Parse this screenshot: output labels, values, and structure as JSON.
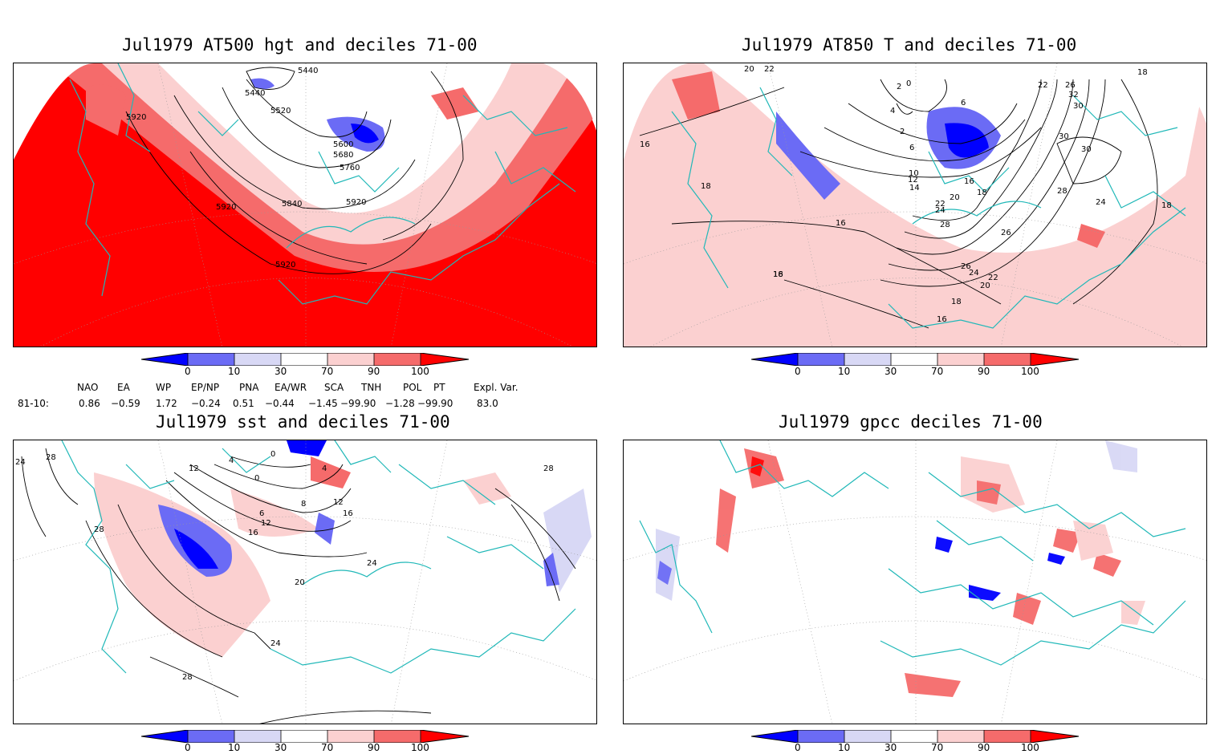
{
  "panels": [
    {
      "id": "p1",
      "title": "Jul1979 AT500 hgt and deciles 71-00",
      "contour_labels": [
        "5440",
        "5440",
        "5520",
        "5920",
        "5600",
        "5680",
        "5760",
        "5840",
        "5920",
        "5920",
        "5920"
      ]
    },
    {
      "id": "p2",
      "title": "Jul1979 AT850 T and deciles 71-00",
      "contour_labels": [
        "20",
        "22",
        "2",
        "0",
        "4",
        "2",
        "6",
        "6",
        "16",
        "18",
        "10",
        "12",
        "14",
        "16",
        "18",
        "20",
        "22",
        "24",
        "28",
        "26",
        "26",
        "24",
        "22",
        "20",
        "18",
        "16",
        "16",
        "16",
        "18",
        "22",
        "26",
        "30",
        "32",
        "30",
        "30",
        "28",
        "24",
        "18",
        "18"
      ]
    },
    {
      "id": "p3",
      "title": "Jul1979 sst and deciles 71-00",
      "contour_labels": [
        "24",
        "28",
        "12",
        "4",
        "0",
        "0",
        "4",
        "6",
        "8",
        "12",
        "16",
        "20",
        "24",
        "24",
        "28",
        "28",
        "28",
        "16",
        "12"
      ]
    },
    {
      "id": "p4",
      "title": "Jul1979 gpcc deciles 71-00",
      "contour_labels": []
    }
  ],
  "colorbar": {
    "ticks": [
      "0",
      "10",
      "30",
      "70",
      "90",
      "100"
    ],
    "colors": {
      "dark_blue": "#0000ff",
      "mid_blue": "#6b6bf5",
      "light_blue": "#d8d8f5",
      "white": "#ffffff",
      "light_red": "#fbd0d0",
      "mid_red": "#f56b6b",
      "dark_red": "#ff0000"
    }
  },
  "indices": {
    "headers": [
      "NAO",
      "EA",
      "WP",
      "EP/NP",
      "PNA",
      "EA/WR",
      "SCA",
      "TNH",
      "POL",
      "PT",
      "Expl. Var."
    ],
    "row_label": "81-10:",
    "values": [
      "0.86",
      "−0.59",
      "1.72",
      "−0.24",
      "0.51",
      "−0.44",
      "−1.45",
      "−99.90",
      "−1.28",
      "−99.90",
      "83.0"
    ]
  },
  "colors": {
    "coast": "#20b8b8",
    "contour": "#000000",
    "grid": "#999999"
  }
}
